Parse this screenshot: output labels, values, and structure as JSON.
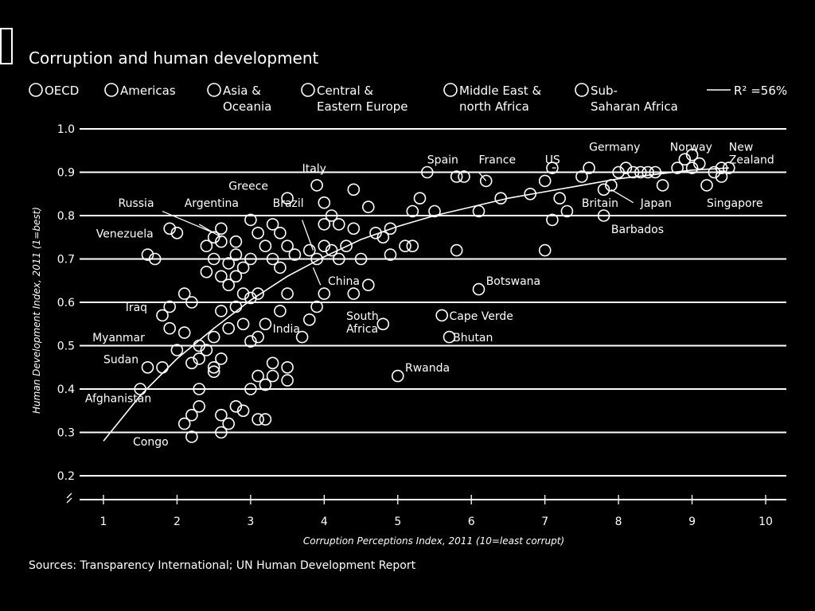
{
  "chart_data": {
    "type": "scatter",
    "title": "Corruption and human development",
    "xlabel": "Corruption Perceptions Index, 2011 (10=least corrupt)",
    "ylabel": "Human Development Index, 2011 (1=best)",
    "xlim": [
      1,
      10
    ],
    "ylim": [
      0.2,
      1.0
    ],
    "x_ticks": [
      1,
      2,
      3,
      4,
      5,
      6,
      7,
      8,
      9,
      10
    ],
    "y_ticks": [
      "0.2",
      "0.3",
      "0.4",
      "0.5",
      "0.6",
      "0.7",
      "0.8",
      "0.9",
      "1.0"
    ],
    "grid": "horizontal",
    "legend": {
      "placement": "top",
      "items": [
        "OECD",
        "Americas",
        "Asia & Oceania",
        "Central & Eastern Europe",
        "Middle East & north Africa",
        "Sub-Saharan Africa"
      ],
      "fit_label": "R² =56%"
    },
    "source": "Sources: Transparency International; UN Human Development Report",
    "trend": {
      "x": [
        1.0,
        1.5,
        2.0,
        2.5,
        3.0,
        3.5,
        4.0,
        4.5,
        5.0,
        5.5,
        6.0,
        6.5,
        7.0,
        7.5,
        8.0,
        8.5,
        9.0,
        9.5
      ],
      "y": [
        0.28,
        0.385,
        0.47,
        0.54,
        0.605,
        0.66,
        0.705,
        0.745,
        0.775,
        0.8,
        0.82,
        0.84,
        0.855,
        0.87,
        0.885,
        0.895,
        0.905,
        0.91
      ]
    },
    "points": [
      [
        1.5,
        0.4
      ],
      [
        1.6,
        0.45
      ],
      [
        1.8,
        0.45
      ],
      [
        1.9,
        0.59
      ],
      [
        1.6,
        0.71
      ],
      [
        1.7,
        0.7
      ],
      [
        1.9,
        0.77
      ],
      [
        2.0,
        0.76
      ],
      [
        1.8,
        0.57
      ],
      [
        1.9,
        0.54
      ],
      [
        2.0,
        0.49
      ],
      [
        2.1,
        0.53
      ],
      [
        2.1,
        0.62
      ],
      [
        2.2,
        0.6
      ],
      [
        2.2,
        0.46
      ],
      [
        2.3,
        0.47
      ],
      [
        2.3,
        0.5
      ],
      [
        2.4,
        0.49
      ],
      [
        2.5,
        0.45
      ],
      [
        2.5,
        0.44
      ],
      [
        2.5,
        0.52
      ],
      [
        2.6,
        0.47
      ],
      [
        2.4,
        0.67
      ],
      [
        2.4,
        0.73
      ],
      [
        2.5,
        0.75
      ],
      [
        2.6,
        0.77
      ],
      [
        2.5,
        0.7
      ],
      [
        2.6,
        0.74
      ],
      [
        2.6,
        0.66
      ],
      [
        2.7,
        0.64
      ],
      [
        2.7,
        0.69
      ],
      [
        2.8,
        0.71
      ],
      [
        2.8,
        0.74
      ],
      [
        2.8,
        0.66
      ],
      [
        2.9,
        0.68
      ],
      [
        2.9,
        0.62
      ],
      [
        3.0,
        0.7
      ],
      [
        3.0,
        0.79
      ],
      [
        3.1,
        0.76
      ],
      [
        3.2,
        0.73
      ],
      [
        3.3,
        0.78
      ],
      [
        3.4,
        0.76
      ],
      [
        3.3,
        0.7
      ],
      [
        3.4,
        0.68
      ],
      [
        3.5,
        0.73
      ],
      [
        3.6,
        0.71
      ],
      [
        2.6,
        0.58
      ],
      [
        2.7,
        0.54
      ],
      [
        2.8,
        0.59
      ],
      [
        2.9,
        0.55
      ],
      [
        3.0,
        0.61
      ],
      [
        3.1,
        0.62
      ],
      [
        3.2,
        0.55
      ],
      [
        3.3,
        0.46
      ],
      [
        3.0,
        0.51
      ],
      [
        3.1,
        0.52
      ],
      [
        2.2,
        0.34
      ],
      [
        2.3,
        0.36
      ],
      [
        2.3,
        0.4
      ],
      [
        2.1,
        0.32
      ],
      [
        2.2,
        0.29
      ],
      [
        2.6,
        0.3
      ],
      [
        2.6,
        0.34
      ],
      [
        2.7,
        0.32
      ],
      [
        2.8,
        0.36
      ],
      [
        2.9,
        0.35
      ],
      [
        3.1,
        0.33
      ],
      [
        3.2,
        0.33
      ],
      [
        3.0,
        0.4
      ],
      [
        3.1,
        0.43
      ],
      [
        3.2,
        0.41
      ],
      [
        3.3,
        0.43
      ],
      [
        3.5,
        0.42
      ],
      [
        3.5,
        0.45
      ],
      [
        3.5,
        0.62
      ],
      [
        3.4,
        0.58
      ],
      [
        3.7,
        0.52
      ],
      [
        3.8,
        0.56
      ],
      [
        3.9,
        0.59
      ],
      [
        3.5,
        0.84
      ],
      [
        3.8,
        0.72
      ],
      [
        3.9,
        0.7
      ],
      [
        4.0,
        0.73
      ],
      [
        4.1,
        0.72
      ],
      [
        4.0,
        0.78
      ],
      [
        4.1,
        0.8
      ],
      [
        4.2,
        0.78
      ],
      [
        4.3,
        0.73
      ],
      [
        4.0,
        0.83
      ],
      [
        3.9,
        0.87
      ],
      [
        4.4,
        0.86
      ],
      [
        4.4,
        0.77
      ],
      [
        4.6,
        0.82
      ],
      [
        4.7,
        0.76
      ],
      [
        4.8,
        0.75
      ],
      [
        4.9,
        0.77
      ],
      [
        4.9,
        0.71
      ],
      [
        4.5,
        0.7
      ],
      [
        4.2,
        0.7
      ],
      [
        4.4,
        0.62
      ],
      [
        4.6,
        0.64
      ],
      [
        4.8,
        0.55
      ],
      [
        4.0,
        0.62
      ],
      [
        5.0,
        0.43
      ],
      [
        5.1,
        0.73
      ],
      [
        5.2,
        0.73
      ],
      [
        5.2,
        0.81
      ],
      [
        5.3,
        0.84
      ],
      [
        5.4,
        0.9
      ],
      [
        5.5,
        0.81
      ],
      [
        5.6,
        0.57
      ],
      [
        5.7,
        0.52
      ],
      [
        5.8,
        0.72
      ],
      [
        5.8,
        0.89
      ],
      [
        5.9,
        0.89
      ],
      [
        6.1,
        0.63
      ],
      [
        6.1,
        0.81
      ],
      [
        6.2,
        0.88
      ],
      [
        6.4,
        0.84
      ],
      [
        6.8,
        0.85
      ],
      [
        7.0,
        0.72
      ],
      [
        7.0,
        0.88
      ],
      [
        7.1,
        0.91
      ],
      [
        7.1,
        0.79
      ],
      [
        7.2,
        0.84
      ],
      [
        7.3,
        0.81
      ],
      [
        7.5,
        0.89
      ],
      [
        7.6,
        0.91
      ],
      [
        7.8,
        0.8
      ],
      [
        7.8,
        0.86
      ],
      [
        7.9,
        0.87
      ],
      [
        8.0,
        0.9
      ],
      [
        8.1,
        0.91
      ],
      [
        8.2,
        0.9
      ],
      [
        8.3,
        0.9
      ],
      [
        8.4,
        0.9
      ],
      [
        8.5,
        0.9
      ],
      [
        8.6,
        0.87
      ],
      [
        8.8,
        0.91
      ],
      [
        8.9,
        0.93
      ],
      [
        9.0,
        0.94
      ],
      [
        9.0,
        0.91
      ],
      [
        9.1,
        0.92
      ],
      [
        9.2,
        0.87
      ],
      [
        9.3,
        0.9
      ],
      [
        9.4,
        0.89
      ],
      [
        9.4,
        0.91
      ],
      [
        9.5,
        0.91
      ]
    ],
    "labels": [
      {
        "text": "Spain",
        "x": 5.4,
        "y": 0.92
      },
      {
        "text": "France",
        "x": 6.1,
        "y": 0.92
      },
      {
        "text": "US",
        "x": 7.0,
        "y": 0.92
      },
      {
        "text": "Germany",
        "x": 7.6,
        "y": 0.95
      },
      {
        "text": "Norway",
        "x": 8.7,
        "y": 0.95
      },
      {
        "text": "New",
        "x": 9.5,
        "y": 0.95
      },
      {
        "text": "Zealand",
        "x": 9.5,
        "y": 0.92
      },
      {
        "text": "Italy",
        "x": 3.7,
        "y": 0.9
      },
      {
        "text": "Greece",
        "x": 2.7,
        "y": 0.86
      },
      {
        "text": "Brazil",
        "x": 3.3,
        "y": 0.82
      },
      {
        "text": "Russia",
        "x": 1.2,
        "y": 0.82
      },
      {
        "text": "Argentina",
        "x": 2.1,
        "y": 0.82
      },
      {
        "text": "Venezuela",
        "x": 0.9,
        "y": 0.75
      },
      {
        "text": "Britain",
        "x": 7.5,
        "y": 0.82
      },
      {
        "text": "Japan",
        "x": 8.3,
        "y": 0.82
      },
      {
        "text": "Singapore",
        "x": 9.2,
        "y": 0.82
      },
      {
        "text": "Barbados",
        "x": 7.9,
        "y": 0.76
      },
      {
        "text": "China",
        "x": 4.05,
        "y": 0.64
      },
      {
        "text": "Botswana",
        "x": 6.2,
        "y": 0.64
      },
      {
        "text": "Iraq",
        "x": 1.3,
        "y": 0.58
      },
      {
        "text": "South",
        "x": 4.3,
        "y": 0.56
      },
      {
        "text": "Africa",
        "x": 4.3,
        "y": 0.53
      },
      {
        "text": "India",
        "x": 3.3,
        "y": 0.53
      },
      {
        "text": "Cape Verde",
        "x": 5.7,
        "y": 0.56
      },
      {
        "text": "Bhutan",
        "x": 5.75,
        "y": 0.51
      },
      {
        "text": "Myanmar",
        "x": 0.85,
        "y": 0.51
      },
      {
        "text": "Sudan",
        "x": 1.0,
        "y": 0.46
      },
      {
        "text": "Rwanda",
        "x": 5.1,
        "y": 0.44
      },
      {
        "text": "Afghanistan",
        "x": 0.75,
        "y": 0.37
      },
      {
        "text": "Congo",
        "x": 1.4,
        "y": 0.27
      }
    ]
  }
}
